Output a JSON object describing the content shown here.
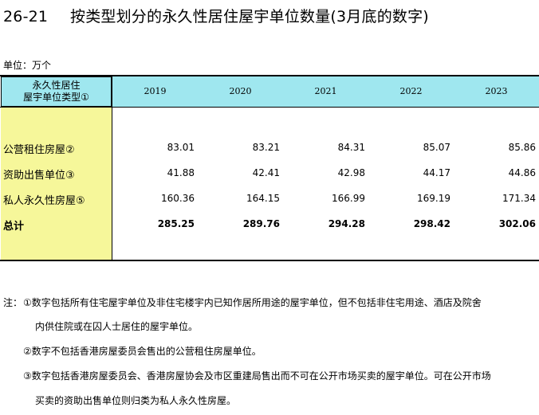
{
  "title": {
    "number": "26-21",
    "text": "按类型划分的永久性居住屋宇单位数量(3月底的数字)"
  },
  "unit_label": "单位：万个",
  "table": {
    "stub_header_line1": "永久性居住",
    "stub_header_line2": "屋宇单位类型①",
    "years": [
      "2019",
      "2020",
      "2021",
      "2022",
      "2023"
    ],
    "rows": [
      {
        "label": "公营租住房屋②",
        "values": [
          "83.01",
          "83.21",
          "84.31",
          "85.07",
          "85.86"
        ],
        "bold": false
      },
      {
        "label": "资助出售单位③",
        "values": [
          "41.88",
          "42.41",
          "42.98",
          "44.17",
          "44.86"
        ],
        "bold": false
      },
      {
        "label": "私人永久性房屋⑤",
        "values": [
          "160.36",
          "164.15",
          "166.99",
          "169.19",
          "171.34"
        ],
        "bold": false
      },
      {
        "label": "总计",
        "values": [
          "285.25",
          "289.76",
          "294.28",
          "298.42",
          "302.06"
        ],
        "bold": true
      }
    ]
  },
  "notes": {
    "prefix": "注：",
    "n1_line1": "①数字包括所有住宅屋宇单位及非住宅楼宇内已知作居所用途的屋宇单位，但不包括非住宅用途、酒店及院舍",
    "n1_line2": "内供住院或在囚人士居住的屋宇单位。",
    "n2": "②数字不包括香港房屋委员会售出的公营租住房屋单位。",
    "n3_line1": "③数字包括香港房屋委员会、香港房屋协会及市区重建局售出而不可在公开市场买卖的屋宇单位。可在公开市场",
    "n3_line2": "买卖的资助出售单位则归类为私人永久性房屋。"
  }
}
